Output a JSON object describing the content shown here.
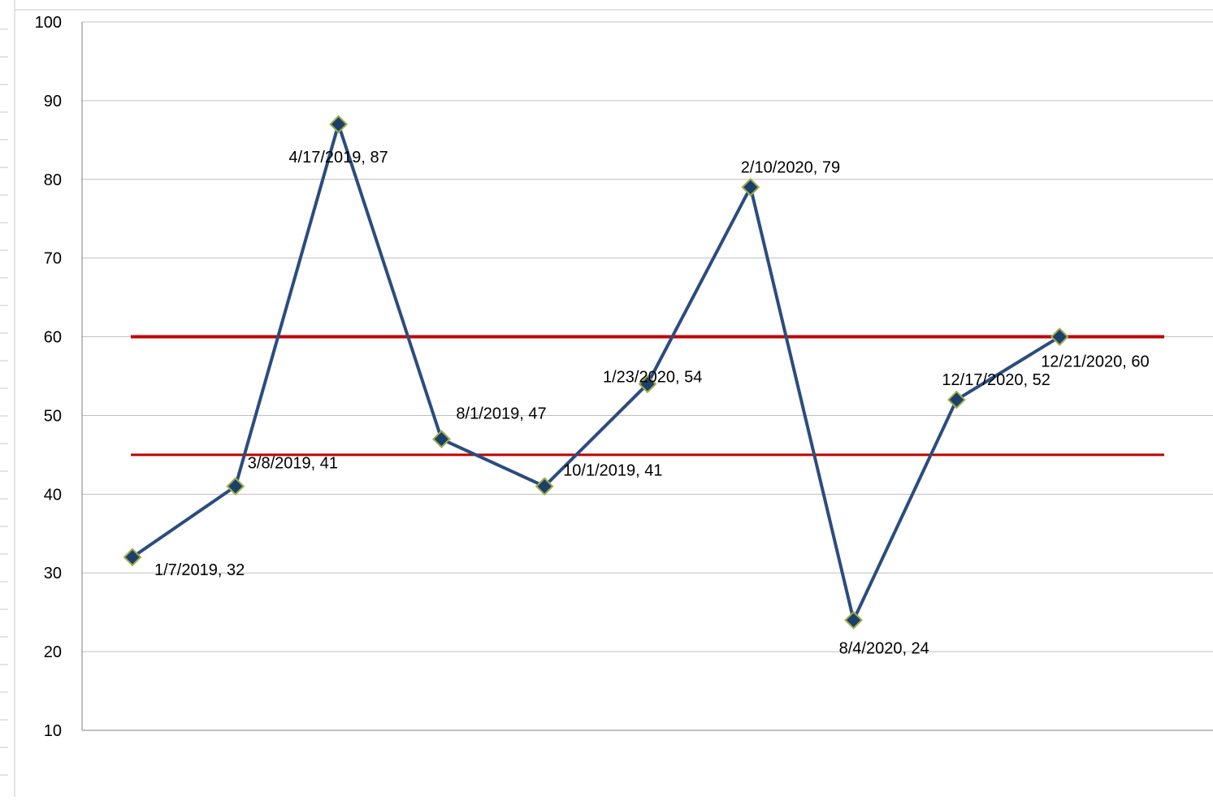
{
  "colors": {
    "series_line": "#2B4C7E",
    "marker_fill": "#1F3F6B",
    "marker_stroke": "#9BAF4A",
    "threshold_line": "#C00000",
    "gridline": "#BFBFBF",
    "axis": "#808080"
  },
  "chart_data": {
    "type": "line",
    "title": "",
    "xlabel": "",
    "ylabel": "",
    "ylim": [
      10,
      100
    ],
    "yticks": [
      10,
      20,
      30,
      40,
      50,
      60,
      70,
      80,
      90,
      100
    ],
    "grid": true,
    "legend": "none",
    "series": [
      {
        "x": [
          "1/7/2019",
          "3/8/2019",
          "4/17/2019",
          "8/1/2019",
          "10/1/2019",
          "1/23/2020",
          "2/10/2020",
          "8/4/2020",
          "12/17/2020",
          "12/21/2020"
        ],
        "values": [
          32,
          41,
          87,
          47,
          41,
          54,
          79,
          24,
          52,
          60
        ],
        "labels": [
          "1/7/2019, 32",
          "3/8/2019, 41",
          "4/17/2019, 87",
          "8/1/2019, 47",
          "10/1/2019, 41",
          "1/23/2020, 54",
          "2/10/2020, 79",
          "8/4/2020, 24",
          "12/17/2020, 52",
          "12/21/2020, 60"
        ]
      }
    ],
    "reference_lines": [
      {
        "y": 60
      },
      {
        "y": 45
      }
    ]
  }
}
